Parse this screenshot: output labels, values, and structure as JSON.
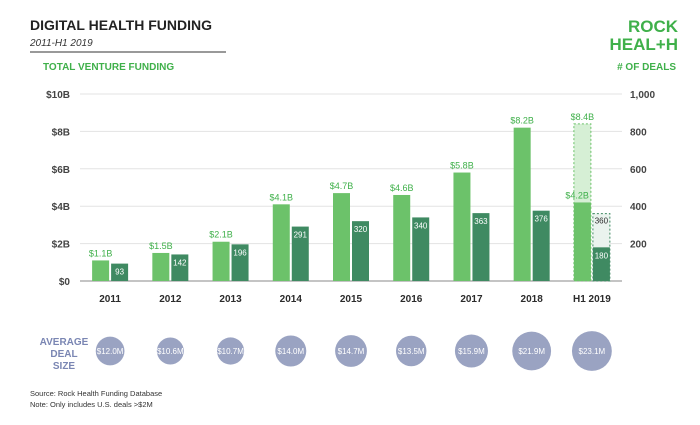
{
  "header": {
    "title": "DIGITAL HEALTH FUNDING",
    "subtitle": "2011-H1 2019",
    "logo_line1": "ROCK",
    "logo_line2": "HEAL+H"
  },
  "colors": {
    "funding": "#6cc26a",
    "deals": "#3f8a62",
    "funding_projected": "#d6efd5",
    "text_green": "#3fb04a",
    "bubble": "#9aa3c2",
    "bubble_text": "#ffffff",
    "axis_text": "#444444",
    "label_dark": "#2b2b2b"
  },
  "chart_data": {
    "type": "bar",
    "title": "DIGITAL HEALTH FUNDING",
    "subtitle": "2011-H1 2019",
    "categories": [
      "2011",
      "2012",
      "2013",
      "2014",
      "2015",
      "2016",
      "2017",
      "2018",
      "H1 2019"
    ],
    "left_axis": {
      "label": "TOTAL VENTURE FUNDING",
      "unit": "$B",
      "ylim": [
        0,
        10
      ],
      "ticks": [
        "$10B",
        "$8B",
        "$6B",
        "$4B",
        "$2B",
        "$0"
      ],
      "tick_values": [
        10,
        8,
        6,
        4,
        2,
        0
      ]
    },
    "right_axis": {
      "label": "# OF DEALS",
      "ylim": [
        0,
        1000
      ],
      "ticks": [
        "1,000",
        "800",
        "600",
        "400",
        "200"
      ],
      "tick_values": [
        1000,
        800,
        600,
        400,
        200
      ]
    },
    "series": [
      {
        "name": "Total Venture Funding",
        "axis": "left",
        "values": [
          1.1,
          1.5,
          2.1,
          4.1,
          4.7,
          4.6,
          5.8,
          8.2,
          4.2
        ],
        "labels": [
          "$1.1B",
          "$1.5B",
          "$2.1B",
          "$4.1B",
          "$4.7B",
          "$4.6B",
          "$5.8B",
          "$8.2B",
          "$4.2B"
        ]
      },
      {
        "name": "# of Deals",
        "axis": "right",
        "values": [
          93,
          142,
          196,
          291,
          320,
          340,
          363,
          376,
          180
        ],
        "labels": [
          "93",
          "142",
          "196",
          "291",
          "320",
          "340",
          "363",
          "376",
          "180"
        ]
      }
    ],
    "projected": {
      "category": "H1 2019",
      "funding_value": 8.4,
      "funding_label": "$8.4B",
      "deals_value": 360,
      "deals_label": "360"
    },
    "average_deal_size": {
      "label_lines": [
        "AVERAGE",
        "DEAL",
        "SIZE"
      ],
      "values": [
        12.0,
        10.6,
        10.7,
        14.0,
        14.7,
        13.5,
        15.9,
        21.9,
        23.1
      ],
      "labels": [
        "$12.0M",
        "$10.6M",
        "$10.7M",
        "$14.0M",
        "$14.7M",
        "$13.5M",
        "$15.9M",
        "$21.9M",
        "$23.1M"
      ]
    }
  },
  "footer": {
    "source": "Source: Rock Health Funding Database",
    "note": "Note: Only includes U.S. deals >$2M"
  }
}
